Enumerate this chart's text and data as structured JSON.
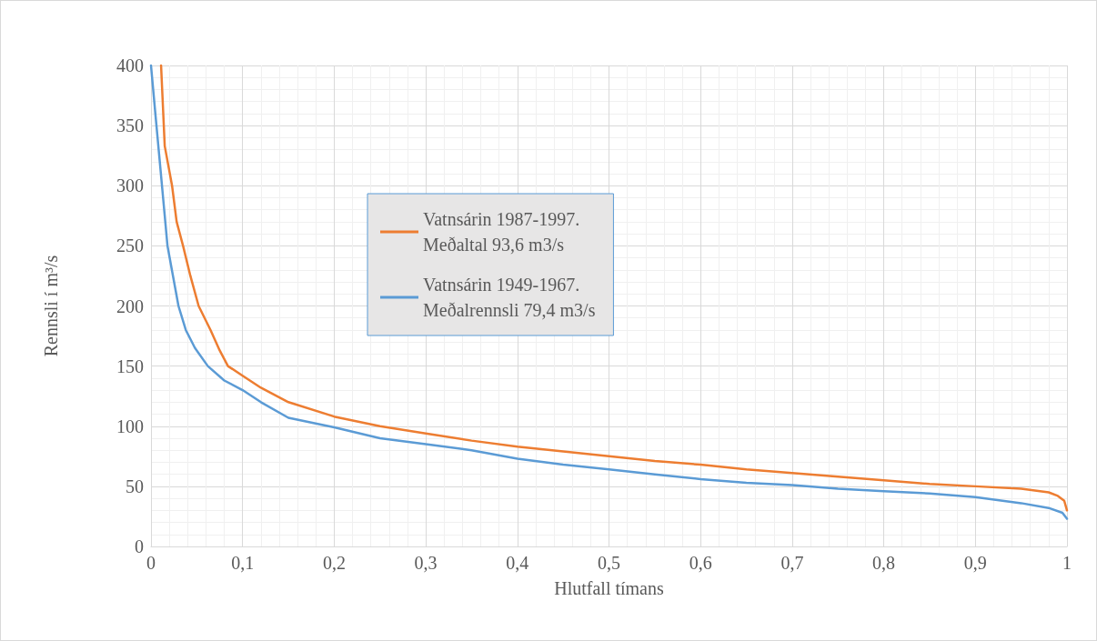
{
  "chart_data": {
    "type": "line",
    "xlabel": "Hlutfall tímans",
    "ylabel": "Rennsli í m³/s",
    "xlim": [
      0,
      1
    ],
    "ylim": [
      0,
      400
    ],
    "xticks": [
      0,
      {
        "value": 0.1,
        "label": "0,1"
      },
      {
        "value": 0.2,
        "label": "0,2"
      },
      {
        "value": 0.3,
        "label": "0,3"
      },
      {
        "value": 0.4,
        "label": "0,4"
      },
      {
        "value": 0.5,
        "label": "0,5"
      },
      {
        "value": 0.6,
        "label": "0,6"
      },
      {
        "value": 0.7,
        "label": "0,7"
      },
      {
        "value": 0.8,
        "label": "0,8"
      },
      {
        "value": 0.9,
        "label": "0,9"
      },
      1
    ],
    "yticks": [
      0,
      50,
      100,
      150,
      200,
      250,
      300,
      350,
      400
    ],
    "grid": true,
    "legend": "top",
    "marker": "none",
    "line_style": "solid",
    "series": [
      {
        "name": "Vatnsárin 1987-1997.\nMeðaltal 93,6 m3/s",
        "color": "#ed7d31",
        "x": [
          0.011,
          0.015,
          0.023,
          0.028,
          0.035,
          0.043,
          0.052,
          0.065,
          0.075,
          0.084,
          0.1,
          0.12,
          0.15,
          0.2,
          0.25,
          0.3,
          0.35,
          0.4,
          0.45,
          0.5,
          0.55,
          0.6,
          0.65,
          0.7,
          0.75,
          0.8,
          0.85,
          0.9,
          0.95,
          0.98,
          0.99,
          0.997,
          1
        ],
        "values": [
          400,
          333,
          300,
          270,
          250,
          225,
          200,
          180,
          163,
          150,
          142,
          132,
          120,
          108,
          100,
          94,
          88,
          83,
          79,
          75,
          71,
          68,
          64,
          61,
          58,
          55,
          52,
          50,
          48,
          45,
          42,
          38,
          30
        ]
      },
      {
        "name": "Vatnsárin 1949-1967.\nMeðalrennsli 79,4 m3/s",
        "color": "#5b9bd5",
        "x": [
          0,
          0.005,
          0.012,
          0.018,
          0.024,
          0.03,
          0.038,
          0.048,
          0.062,
          0.08,
          0.1,
          0.12,
          0.15,
          0.2,
          0.25,
          0.3,
          0.35,
          0.4,
          0.45,
          0.5,
          0.55,
          0.6,
          0.65,
          0.7,
          0.75,
          0.8,
          0.85,
          0.9,
          0.95,
          0.98,
          0.995,
          1
        ],
        "values": [
          400,
          358,
          300,
          250,
          225,
          200,
          180,
          165,
          150,
          138,
          130,
          120,
          107,
          99,
          90,
          85,
          80,
          73,
          68,
          64,
          60,
          56,
          53,
          51,
          48,
          46,
          44,
          41,
          36,
          32,
          28,
          23
        ]
      }
    ]
  }
}
